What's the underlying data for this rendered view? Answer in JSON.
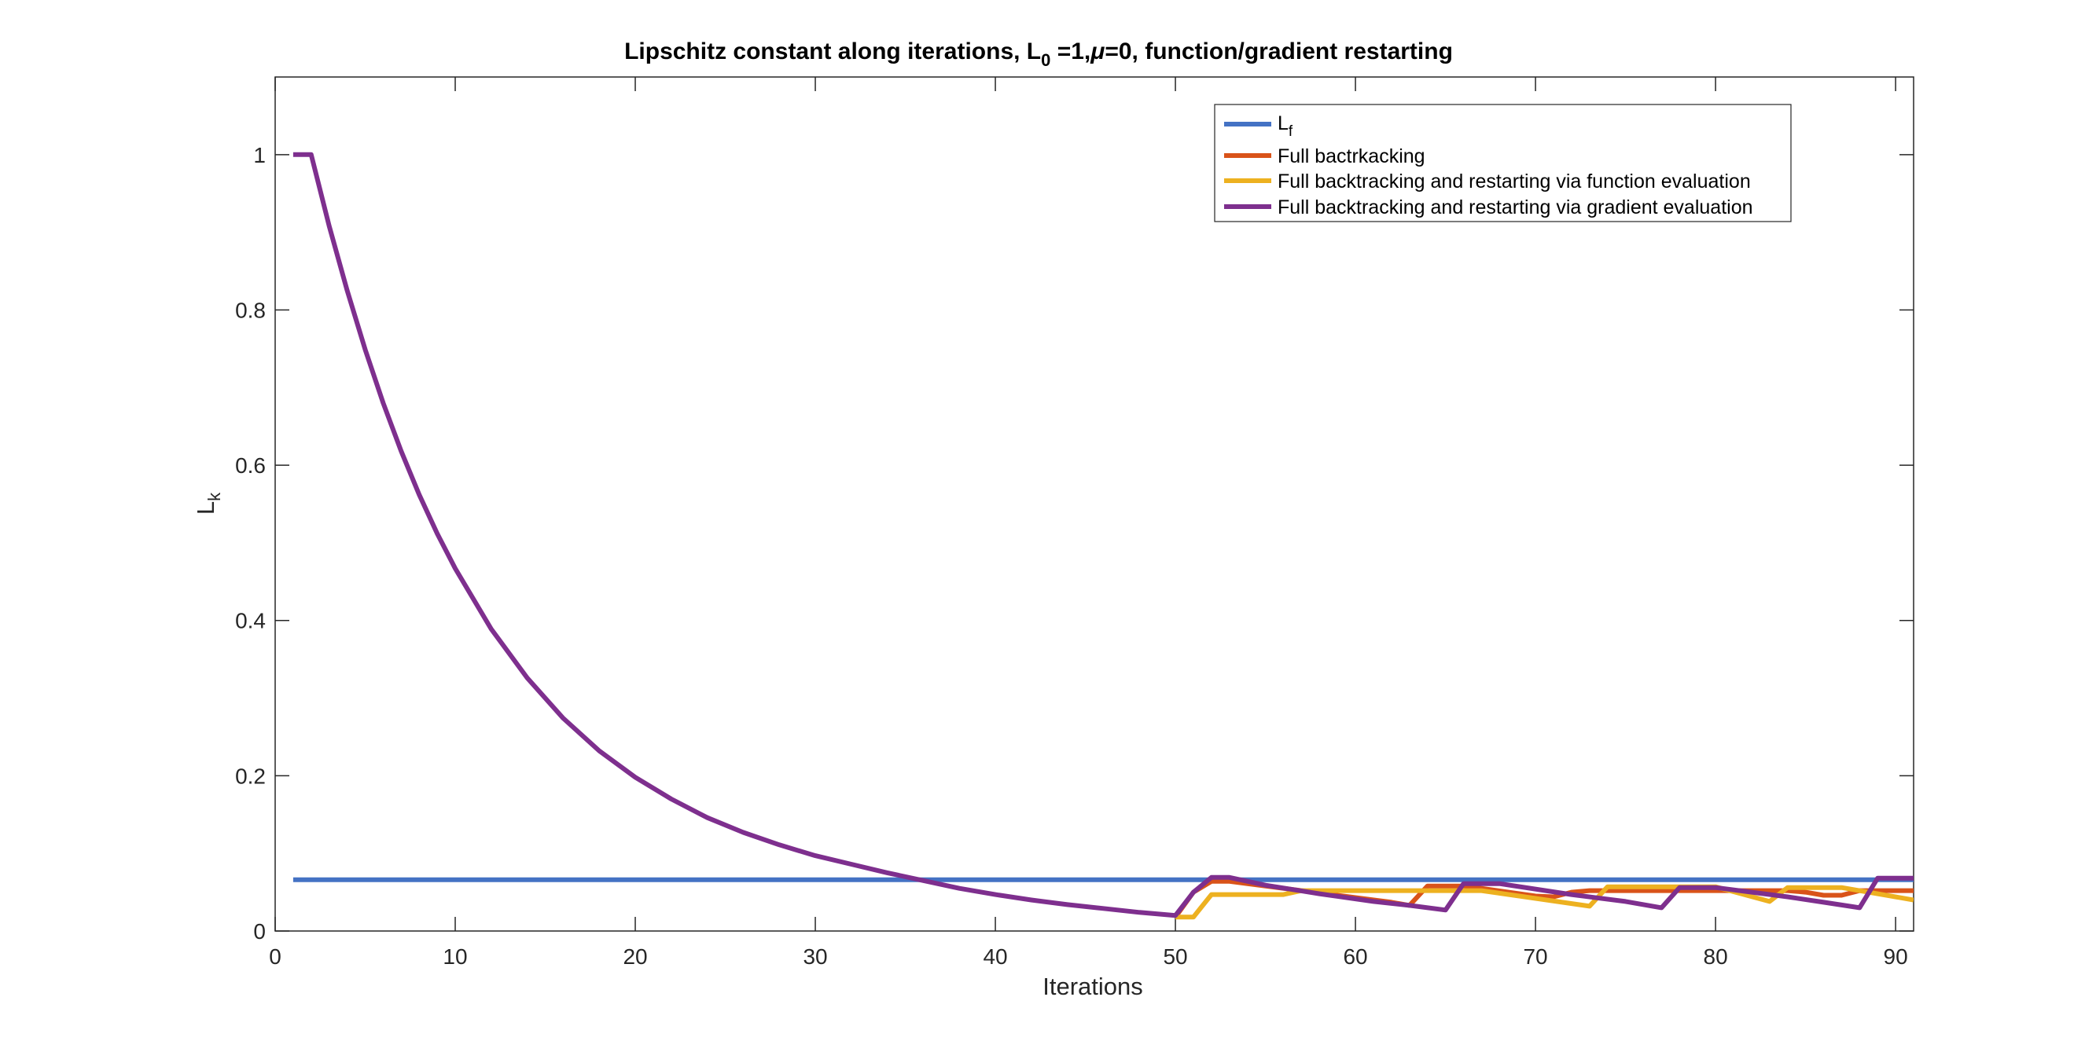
{
  "chart_data": {
    "type": "line",
    "title": {
      "prefix": "Lipschitz constant along iterations, L",
      "sub": "0",
      "mid": " =1,",
      "mu": "μ",
      "suffix": "=0, function/gradient restarting"
    },
    "xlabel": "Iterations",
    "ylabel": {
      "base": "L",
      "sub": "k"
    },
    "xlim": [
      0,
      91
    ],
    "ylim": [
      0,
      1.1
    ],
    "xticks": [
      0,
      10,
      20,
      30,
      40,
      50,
      60,
      70,
      80,
      90
    ],
    "yticks": [
      0,
      0.2,
      0.4,
      0.6,
      0.8,
      1
    ],
    "grid": false,
    "legend_position": "top-right",
    "series": [
      {
        "key": "lf",
        "name": {
          "base": "L",
          "sub": "f"
        },
        "color": "#4472C4",
        "points": [
          [
            1,
            0.066
          ],
          [
            91,
            0.066
          ]
        ]
      },
      {
        "key": "full",
        "name": "Full bactrkacking",
        "color": "#D95319",
        "points": [
          [
            50,
            0.018
          ],
          [
            51,
            0.05
          ],
          [
            52,
            0.064
          ],
          [
            53,
            0.064
          ],
          [
            62,
            0.037
          ],
          [
            63,
            0.033
          ],
          [
            64,
            0.058
          ],
          [
            66,
            0.058
          ],
          [
            67,
            0.055
          ],
          [
            70,
            0.045
          ],
          [
            71,
            0.044
          ],
          [
            72,
            0.05
          ],
          [
            73,
            0.052
          ],
          [
            80,
            0.052
          ],
          [
            84,
            0.052
          ],
          [
            85,
            0.05
          ],
          [
            86,
            0.046
          ],
          [
            87,
            0.046
          ],
          [
            88,
            0.052
          ],
          [
            91,
            0.052
          ]
        ]
      },
      {
        "key": "func",
        "name": "Full backtracking and restarting via function evaluation",
        "color": "#EDB120",
        "points": [
          [
            50,
            0.018
          ],
          [
            51,
            0.018
          ],
          [
            52,
            0.047
          ],
          [
            56,
            0.047
          ],
          [
            57,
            0.052
          ],
          [
            67,
            0.052
          ],
          [
            73,
            0.032
          ],
          [
            74,
            0.057
          ],
          [
            80,
            0.057
          ],
          [
            83,
            0.038
          ],
          [
            84,
            0.056
          ],
          [
            87,
            0.056
          ],
          [
            91,
            0.04
          ]
        ]
      },
      {
        "key": "grad",
        "name": "Full backtracking and restarting via gradient evaluation",
        "color": "#7E2F8E",
        "points": [
          [
            1,
            1
          ],
          [
            2,
            1
          ],
          [
            3,
            0.908
          ],
          [
            4,
            0.825
          ],
          [
            5,
            0.749
          ],
          [
            6,
            0.68
          ],
          [
            7,
            0.618
          ],
          [
            8,
            0.562
          ],
          [
            9,
            0.512
          ],
          [
            10,
            0.467
          ],
          [
            12,
            0.389
          ],
          [
            14,
            0.326
          ],
          [
            16,
            0.274
          ],
          [
            18,
            0.232
          ],
          [
            20,
            0.198
          ],
          [
            22,
            0.17
          ],
          [
            24,
            0.146
          ],
          [
            26,
            0.127
          ],
          [
            28,
            0.111
          ],
          [
            30,
            0.097
          ],
          [
            32,
            0.086
          ],
          [
            34,
            0.075
          ],
          [
            36,
            0.065
          ],
          [
            38,
            0.055
          ],
          [
            40,
            0.047
          ],
          [
            42,
            0.04
          ],
          [
            44,
            0.034
          ],
          [
            46,
            0.029
          ],
          [
            48,
            0.024
          ],
          [
            50,
            0.02
          ],
          [
            51,
            0.05
          ],
          [
            52,
            0.069
          ],
          [
            53,
            0.069
          ],
          [
            55,
            0.059
          ],
          [
            58,
            0.048
          ],
          [
            61,
            0.038
          ],
          [
            63,
            0.033
          ],
          [
            65,
            0.027
          ],
          [
            66,
            0.061
          ],
          [
            68,
            0.061
          ],
          [
            72,
            0.047
          ],
          [
            75,
            0.038
          ],
          [
            77,
            0.03
          ],
          [
            78,
            0.056
          ],
          [
            80,
            0.056
          ],
          [
            84,
            0.044
          ],
          [
            86,
            0.037
          ],
          [
            88,
            0.03
          ],
          [
            89,
            0.068
          ],
          [
            91,
            0.068
          ]
        ]
      }
    ]
  }
}
